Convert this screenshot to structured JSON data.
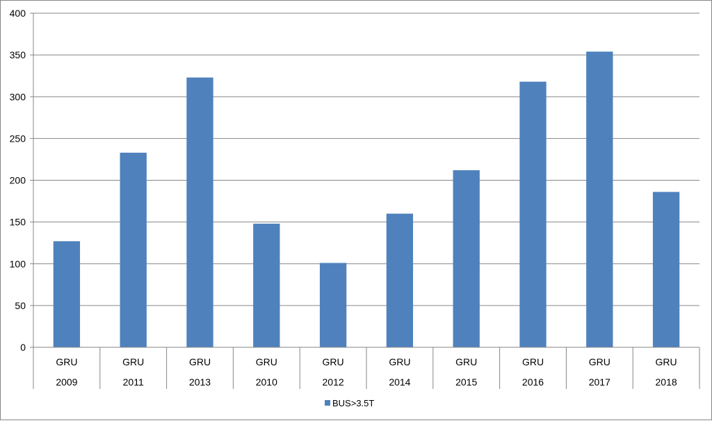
{
  "chart_data": {
    "type": "bar",
    "categories": [
      {
        "outer": "2009",
        "inner": "GRU"
      },
      {
        "outer": "2011",
        "inner": "GRU"
      },
      {
        "outer": "2013",
        "inner": "GRU"
      },
      {
        "outer": "2010",
        "inner": "GRU"
      },
      {
        "outer": "2012",
        "inner": "GRU"
      },
      {
        "outer": "2014",
        "inner": "GRU"
      },
      {
        "outer": "2015",
        "inner": "GRU"
      },
      {
        "outer": "2016",
        "inner": "GRU"
      },
      {
        "outer": "2017",
        "inner": "GRU"
      },
      {
        "outer": "2018",
        "inner": "GRU"
      }
    ],
    "series": [
      {
        "name": "BUS>3.5T",
        "values": [
          127,
          233,
          323,
          148,
          101,
          160,
          212,
          318,
          354,
          186
        ],
        "color": "#4F81BD"
      }
    ],
    "ylim": [
      0,
      400
    ],
    "yticks": [
      "0",
      "50",
      "100",
      "150",
      "200",
      "250",
      "300",
      "350",
      "400"
    ],
    "grid": true,
    "legend": "bottom"
  }
}
